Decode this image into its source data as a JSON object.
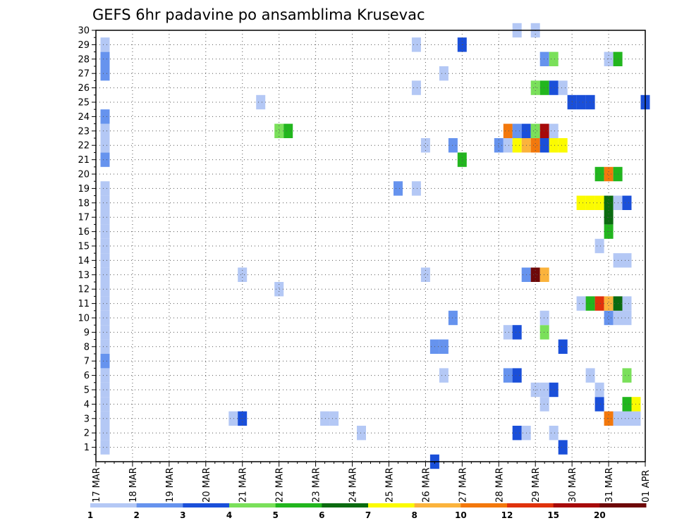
{
  "chart_data": {
    "type": "heatmap",
    "title": "GEFS 6hr padavine po ansamblima Krusevac",
    "x_tick_labels": [
      "17 MAR",
      "18 MAR",
      "19 MAR",
      "20 MAR",
      "21 MAR",
      "22 MAR",
      "23 MAR",
      "24 MAR",
      "25 MAR",
      "26 MAR",
      "27 MAR",
      "28 MAR",
      "29 MAR",
      "30 MAR",
      "31 MAR",
      "01 APR"
    ],
    "x_range_days": [
      0,
      15
    ],
    "y_range": [
      0,
      30
    ],
    "y_ticks": [
      1,
      2,
      3,
      4,
      5,
      6,
      7,
      8,
      9,
      10,
      11,
      12,
      13,
      14,
      15,
      16,
      17,
      18,
      19,
      20,
      21,
      22,
      23,
      24,
      25,
      26,
      27,
      28,
      29,
      30
    ],
    "grid": true,
    "colorbar": {
      "levels": [
        1,
        2,
        3,
        4,
        5,
        6,
        7,
        8,
        10,
        12,
        15,
        20
      ],
      "colors": [
        "#b4c8f5",
        "#6693ee",
        "#1a4fd9",
        "#7ae05a",
        "#22b61e",
        "#0b6b10",
        "#fbfb00",
        "#fbb33c",
        "#f3780c",
        "#e0320c",
        "#a70a0a",
        "#6e0808"
      ]
    },
    "cells": [
      {
        "x": 0.25,
        "member": 1,
        "c": 0
      },
      {
        "x": 0.25,
        "member": 2,
        "c": 0
      },
      {
        "x": 0.25,
        "member": 3,
        "c": 0
      },
      {
        "x": 0.25,
        "member": 4,
        "c": 0
      },
      {
        "x": 0.25,
        "member": 5,
        "c": 0
      },
      {
        "x": 0.25,
        "member": 6,
        "c": 0
      },
      {
        "x": 0.25,
        "member": 7,
        "c": 1
      },
      {
        "x": 0.25,
        "member": 8,
        "c": 0
      },
      {
        "x": 0.25,
        "member": 9,
        "c": 0
      },
      {
        "x": 0.25,
        "member": 10,
        "c": 0
      },
      {
        "x": 0.25,
        "member": 11,
        "c": 0
      },
      {
        "x": 0.25,
        "member": 12,
        "c": 0
      },
      {
        "x": 0.25,
        "member": 13,
        "c": 0
      },
      {
        "x": 0.25,
        "member": 14,
        "c": 0
      },
      {
        "x": 0.25,
        "member": 15,
        "c": 0
      },
      {
        "x": 0.25,
        "member": 16,
        "c": 0
      },
      {
        "x": 0.25,
        "member": 17,
        "c": 0
      },
      {
        "x": 0.25,
        "member": 18,
        "c": 0
      },
      {
        "x": 0.25,
        "member": 19,
        "c": 0
      },
      {
        "x": 0.25,
        "member": 21,
        "c": 1
      },
      {
        "x": 0.25,
        "member": 22,
        "c": 0
      },
      {
        "x": 0.25,
        "member": 23,
        "c": 0
      },
      {
        "x": 0.25,
        "member": 24,
        "c": 1
      },
      {
        "x": 0.25,
        "member": 27,
        "c": 1
      },
      {
        "x": 0.25,
        "member": 28,
        "c": 1
      },
      {
        "x": 0.25,
        "member": 29,
        "c": 0
      },
      {
        "x": 3.75,
        "member": 3,
        "c": 0
      },
      {
        "x": 4.0,
        "member": 3,
        "c": 2
      },
      {
        "x": 4.0,
        "member": 13,
        "c": 0
      },
      {
        "x": 4.5,
        "member": 25,
        "c": 0
      },
      {
        "x": 5.0,
        "member": 12,
        "c": 0
      },
      {
        "x": 5.0,
        "member": 23,
        "c": 3
      },
      {
        "x": 5.25,
        "member": 23,
        "c": 4
      },
      {
        "x": 6.25,
        "member": 3,
        "c": 0
      },
      {
        "x": 6.5,
        "member": 3,
        "c": 0
      },
      {
        "x": 7.25,
        "member": 2,
        "c": 0
      },
      {
        "x": 8.25,
        "member": 19,
        "c": 1
      },
      {
        "x": 8.75,
        "member": 19,
        "c": 0
      },
      {
        "x": 8.75,
        "member": 26,
        "c": 0
      },
      {
        "x": 8.75,
        "member": 29,
        "c": 0
      },
      {
        "x": 9.0,
        "member": 13,
        "c": 0
      },
      {
        "x": 9.0,
        "member": 22,
        "c": 0
      },
      {
        "x": 9.25,
        "member": 0,
        "c": 2
      },
      {
        "x": 9.25,
        "member": 8,
        "c": 1
      },
      {
        "x": 9.5,
        "member": 8,
        "c": 1
      },
      {
        "x": 9.5,
        "member": 6,
        "c": 0
      },
      {
        "x": 9.5,
        "member": 27,
        "c": 0
      },
      {
        "x": 9.75,
        "member": 10,
        "c": 1
      },
      {
        "x": 9.75,
        "member": 22,
        "c": 1
      },
      {
        "x": 10.0,
        "member": 21,
        "c": 4
      },
      {
        "x": 10.0,
        "member": 29,
        "c": 2
      },
      {
        "x": 11.0,
        "member": 22,
        "c": 1
      },
      {
        "x": 11.25,
        "member": 6,
        "c": 1
      },
      {
        "x": 11.25,
        "member": 9,
        "c": 0
      },
      {
        "x": 11.25,
        "member": 22,
        "c": 0
      },
      {
        "x": 11.25,
        "member": 23,
        "c": 8
      },
      {
        "x": 11.5,
        "member": 2,
        "c": 2
      },
      {
        "x": 11.5,
        "member": 6,
        "c": 2
      },
      {
        "x": 11.5,
        "member": 9,
        "c": 2
      },
      {
        "x": 11.5,
        "member": 22,
        "c": 6
      },
      {
        "x": 11.5,
        "member": 23,
        "c": 1
      },
      {
        "x": 11.5,
        "member": 30,
        "c": 0
      },
      {
        "x": 11.75,
        "member": 2,
        "c": 0
      },
      {
        "x": 11.75,
        "member": 13,
        "c": 1
      },
      {
        "x": 11.75,
        "member": 22,
        "c": 7
      },
      {
        "x": 11.75,
        "member": 23,
        "c": 2
      },
      {
        "x": 12.0,
        "member": 5,
        "c": 0
      },
      {
        "x": 12.0,
        "member": 13,
        "c": 11
      },
      {
        "x": 12.0,
        "member": 22,
        "c": 8
      },
      {
        "x": 12.0,
        "member": 23,
        "c": 3
      },
      {
        "x": 12.0,
        "member": 26,
        "c": 3
      },
      {
        "x": 12.0,
        "member": 30,
        "c": 0
      },
      {
        "x": 12.25,
        "member": 4,
        "c": 0
      },
      {
        "x": 12.25,
        "member": 5,
        "c": 0
      },
      {
        "x": 12.25,
        "member": 9,
        "c": 3
      },
      {
        "x": 12.25,
        "member": 10,
        "c": 0
      },
      {
        "x": 12.25,
        "member": 13,
        "c": 7
      },
      {
        "x": 12.25,
        "member": 22,
        "c": 2
      },
      {
        "x": 12.25,
        "member": 23,
        "c": 10
      },
      {
        "x": 12.25,
        "member": 26,
        "c": 4
      },
      {
        "x": 12.25,
        "member": 28,
        "c": 1
      },
      {
        "x": 12.5,
        "member": 2,
        "c": 0
      },
      {
        "x": 12.5,
        "member": 5,
        "c": 2
      },
      {
        "x": 12.5,
        "member": 22,
        "c": 6
      },
      {
        "x": 12.5,
        "member": 23,
        "c": 0
      },
      {
        "x": 12.5,
        "member": 26,
        "c": 2
      },
      {
        "x": 12.5,
        "member": 28,
        "c": 3
      },
      {
        "x": 12.75,
        "member": 1,
        "c": 2
      },
      {
        "x": 12.75,
        "member": 8,
        "c": 2
      },
      {
        "x": 12.75,
        "member": 22,
        "c": 6
      },
      {
        "x": 12.75,
        "member": 26,
        "c": 0
      },
      {
        "x": 13.0,
        "member": 25,
        "c": 2
      },
      {
        "x": 13.25,
        "member": 25,
        "c": 2
      },
      {
        "x": 13.5,
        "member": 25,
        "c": 2
      },
      {
        "x": 13.25,
        "member": 11,
        "c": 0
      },
      {
        "x": 13.25,
        "member": 18,
        "c": 6
      },
      {
        "x": 13.5,
        "member": 11,
        "c": 4
      },
      {
        "x": 13.5,
        "member": 18,
        "c": 6
      },
      {
        "x": 13.5,
        "member": 6,
        "c": 0
      },
      {
        "x": 13.75,
        "member": 4,
        "c": 2
      },
      {
        "x": 13.75,
        "member": 5,
        "c": 0
      },
      {
        "x": 13.75,
        "member": 11,
        "c": 9
      },
      {
        "x": 13.75,
        "member": 15,
        "c": 0
      },
      {
        "x": 13.75,
        "member": 18,
        "c": 6
      },
      {
        "x": 13.75,
        "member": 20,
        "c": 4
      },
      {
        "x": 14.0,
        "member": 3,
        "c": 8
      },
      {
        "x": 14.0,
        "member": 10,
        "c": 1
      },
      {
        "x": 14.0,
        "member": 11,
        "c": 7
      },
      {
        "x": 14.0,
        "member": 16,
        "c": 4
      },
      {
        "x": 14.0,
        "member": 17,
        "c": 5
      },
      {
        "x": 14.0,
        "member": 18,
        "c": 5
      },
      {
        "x": 14.0,
        "member": 20,
        "c": 8
      },
      {
        "x": 14.0,
        "member": 28,
        "c": 0
      },
      {
        "x": 14.25,
        "member": 3,
        "c": 0
      },
      {
        "x": 14.25,
        "member": 10,
        "c": 0
      },
      {
        "x": 14.25,
        "member": 11,
        "c": 5
      },
      {
        "x": 14.25,
        "member": 14,
        "c": 0
      },
      {
        "x": 14.25,
        "member": 18,
        "c": 0
      },
      {
        "x": 14.25,
        "member": 20,
        "c": 4
      },
      {
        "x": 14.25,
        "member": 28,
        "c": 4
      },
      {
        "x": 14.5,
        "member": 3,
        "c": 0
      },
      {
        "x": 14.5,
        "member": 4,
        "c": 4
      },
      {
        "x": 14.5,
        "member": 6,
        "c": 3
      },
      {
        "x": 14.5,
        "member": 10,
        "c": 0
      },
      {
        "x": 14.5,
        "member": 11,
        "c": 0
      },
      {
        "x": 14.5,
        "member": 14,
        "c": 0
      },
      {
        "x": 14.5,
        "member": 18,
        "c": 2
      },
      {
        "x": 14.75,
        "member": 3,
        "c": 0
      },
      {
        "x": 14.75,
        "member": 4,
        "c": 6
      },
      {
        "x": 15.0,
        "member": 25,
        "c": 2
      }
    ]
  }
}
